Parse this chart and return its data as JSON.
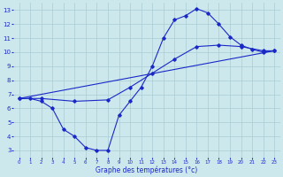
{
  "line1_x": [
    0,
    1,
    2,
    3,
    4,
    5,
    6,
    7,
    8,
    9,
    10,
    11,
    12,
    13,
    14,
    15,
    16,
    17,
    18,
    19,
    20,
    21,
    22,
    23
  ],
  "line1_y": [
    6.7,
    6.7,
    6.5,
    6.0,
    4.5,
    4.0,
    3.2,
    3.0,
    3.0,
    5.5,
    6.5,
    7.5,
    9.0,
    11.0,
    12.3,
    12.6,
    13.1,
    12.8,
    12.0,
    11.1,
    10.5,
    10.2,
    10.0,
    10.1
  ],
  "line2_x": [
    0,
    23
  ],
  "line2_y": [
    6.7,
    10.1
  ],
  "line3_x": [
    0,
    2,
    5,
    8,
    10,
    12,
    14,
    16,
    18,
    20,
    22,
    23
  ],
  "line3_y": [
    6.7,
    6.7,
    6.5,
    6.6,
    7.5,
    8.5,
    9.5,
    10.4,
    10.5,
    10.4,
    10.1,
    10.1
  ],
  "bg_color": "#cce8ec",
  "grid_color": "#aaccd4",
  "line_color": "#1a28c8",
  "xlabel": "Graphe des températures (°c)",
  "xlim": [
    -0.5,
    23.5
  ],
  "ylim": [
    2.5,
    13.5
  ],
  "xticks": [
    0,
    1,
    2,
    3,
    4,
    5,
    6,
    7,
    8,
    9,
    10,
    11,
    12,
    13,
    14,
    15,
    16,
    17,
    18,
    19,
    20,
    21,
    22,
    23
  ],
  "yticks": [
    3,
    4,
    5,
    6,
    7,
    8,
    9,
    10,
    11,
    12,
    13
  ]
}
